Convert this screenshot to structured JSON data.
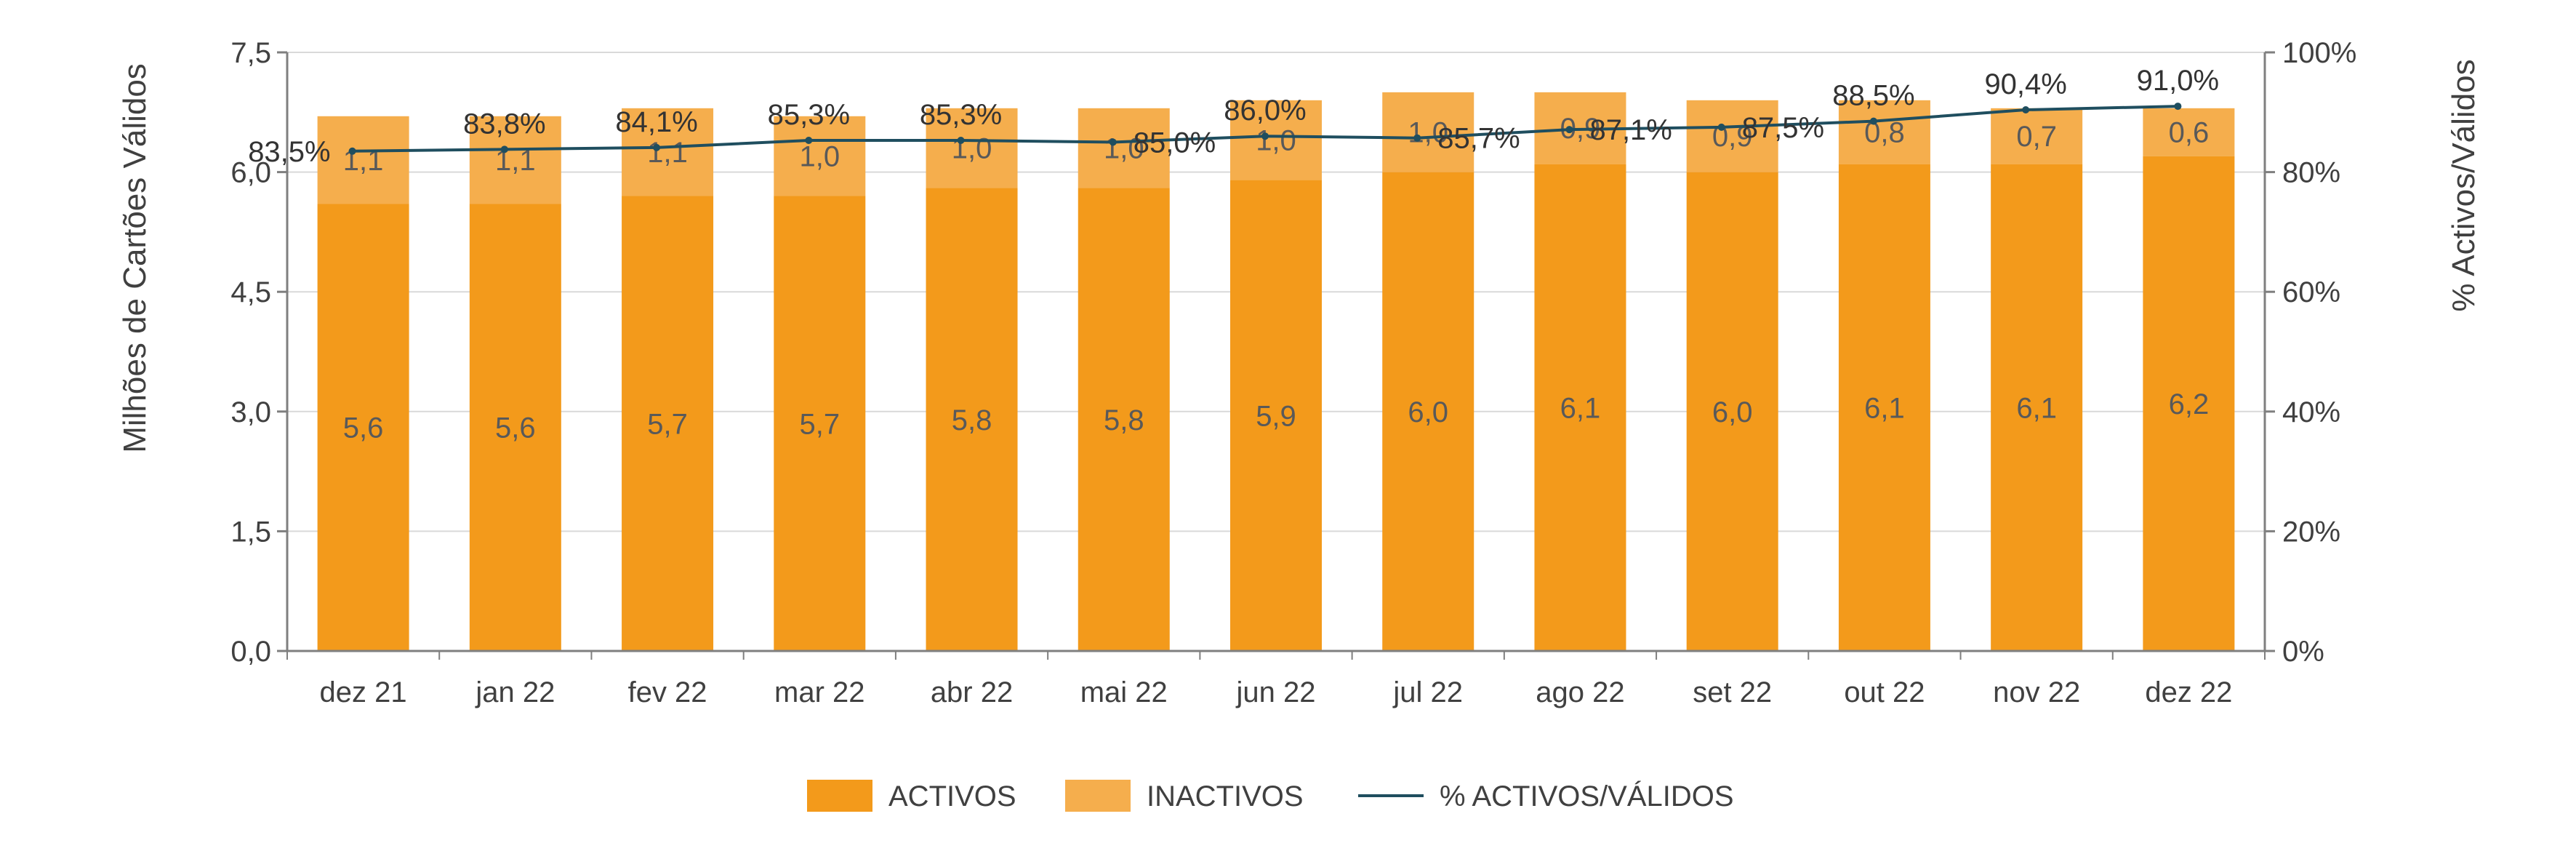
{
  "chart_data": {
    "type": "bar",
    "stacked": true,
    "categories": [
      "dez 21",
      "jan 22",
      "fev 22",
      "mar 22",
      "abr 22",
      "mai 22",
      "jun 22",
      "jul 22",
      "ago 22",
      "set 22",
      "out 22",
      "nov 22",
      "dez 22"
    ],
    "series": [
      {
        "name": "ACTIVOS",
        "type": "bar",
        "axis": "left",
        "color": "#F39A1B",
        "values": [
          5.6,
          5.6,
          5.7,
          5.7,
          5.8,
          5.8,
          5.9,
          6.0,
          6.1,
          6.0,
          6.1,
          6.1,
          6.2
        ],
        "labels": [
          "5,6",
          "5,6",
          "5,7",
          "5,7",
          "5,8",
          "5,8",
          "5,9",
          "6,0",
          "6,1",
          "6,0",
          "6,1",
          "6,1",
          "6,2"
        ]
      },
      {
        "name": "INACTIVOS",
        "type": "bar",
        "axis": "left",
        "color": "#F5AE4D",
        "values": [
          1.1,
          1.1,
          1.1,
          1.0,
          1.0,
          1.0,
          1.0,
          1.0,
          0.9,
          0.9,
          0.8,
          0.7,
          0.6
        ],
        "labels": [
          "1,1",
          "1,1",
          "1,1",
          "1,0",
          "1,0",
          "1,0",
          "1,0",
          "1,0",
          "0,9",
          "0,9",
          "0,8",
          "0,7",
          "0,6"
        ]
      },
      {
        "name": "% ACTIVOS/VÁLIDOS",
        "type": "line",
        "axis": "right",
        "color": "#1F4E5F",
        "values": [
          83.5,
          83.8,
          84.1,
          85.3,
          85.3,
          85.0,
          86.0,
          85.7,
          87.1,
          87.5,
          88.5,
          90.4,
          91.0
        ],
        "labels": [
          "83,5%",
          "83,8%",
          "84,1%",
          "85,3%",
          "85,3%",
          "85,0%",
          "86,0%",
          "85,7%",
          "87,1%",
          "87,5%",
          "88,5%",
          "90,4%",
          "91,0%"
        ]
      }
    ],
    "y_left": {
      "label": "Milhões de Cartões Válidos",
      "range": [
        0,
        7.5
      ],
      "ticks": [
        "0,0",
        "1,5",
        "3,0",
        "4,5",
        "6,0",
        "7,5"
      ]
    },
    "y_right": {
      "label": "% Activos/Válidos",
      "range": [
        0,
        100
      ],
      "ticks": [
        "0%",
        "20%",
        "40%",
        "60%",
        "80%",
        "100%"
      ]
    },
    "grid": true,
    "legend": {
      "position": "bottom",
      "items": [
        "ACTIVOS",
        "INACTIVOS",
        "% ACTIVOS/VÁLIDOS"
      ]
    }
  }
}
